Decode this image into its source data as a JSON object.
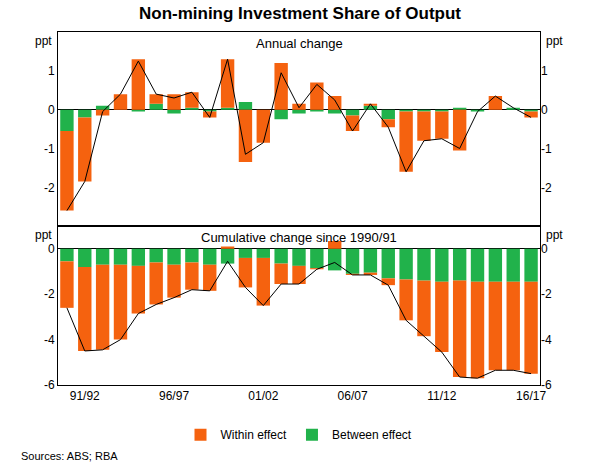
{
  "chart_data": [
    {
      "type": "bar",
      "title": "Non-mining Investment Share of Output",
      "subtitle": "Annual change",
      "ylabel": "ppt",
      "stacked": true,
      "grid": false,
      "legend": "bottom",
      "tick_labels": "y",
      "categories": [
        null,
        null,
        null,
        null,
        null,
        null,
        null,
        null,
        null,
        null,
        null,
        null,
        null,
        null,
        null,
        null,
        null,
        null,
        null,
        null,
        null,
        null,
        null,
        null,
        null,
        null,
        null
      ],
      "series": [
        {
          "name": "Between effect",
          "type": "bar",
          "color": "#21b24b",
          "values": [
            -0.55,
            -0.2,
            0.1,
            0,
            -0.05,
            0.15,
            -0.1,
            0.05,
            -0.05,
            0.05,
            0.2,
            0,
            -0.25,
            -0.1,
            -0.05,
            -0.1,
            -0.15,
            0.1,
            -0.25,
            -0.05,
            -0.05,
            -0.05,
            0.05,
            -0.05,
            0,
            0.05,
            -0.05
          ]
        },
        {
          "name": "Within effect",
          "type": "bar",
          "color": "#f5620f",
          "values": [
            -2.05,
            -1.65,
            -0.15,
            0.4,
            1.3,
            0.25,
            0.4,
            0.4,
            -0.15,
            1.25,
            -1.35,
            -0.85,
            1.2,
            0.15,
            0.7,
            0.35,
            -0.4,
            0.05,
            -0.2,
            -1.55,
            -0.75,
            -0.7,
            -1.05,
            0,
            0.35,
            0,
            -0.15
          ]
        },
        {
          "type": "line",
          "color": "#000000",
          "line_style": "solid",
          "values": [
            -2.6,
            -1.85,
            -0.05,
            0.4,
            1.25,
            0.4,
            0.3,
            0.45,
            -0.2,
            1.3,
            -1.15,
            -0.85,
            0.95,
            0.05,
            0.65,
            0.25,
            -0.55,
            0.15,
            -0.45,
            -1.6,
            -0.8,
            -0.75,
            -1.0,
            -0.05,
            0.35,
            0.05,
            -0.2
          ]
        }
      ],
      "ylim": [
        -3,
        2
      ],
      "yticks": [
        -2,
        -1,
        0,
        1
      ]
    },
    {
      "type": "bar",
      "subtitle": "Cumulative change since 1990/91",
      "ylabel": "ppt",
      "stacked": true,
      "grid": false,
      "annotations": [
        "Sources: ABS; RBA"
      ],
      "categories": [
        null,
        "91/92",
        null,
        null,
        null,
        null,
        "96/97",
        null,
        null,
        null,
        null,
        "01/02",
        null,
        null,
        null,
        null,
        "06/07",
        null,
        null,
        null,
        null,
        "11/12",
        null,
        null,
        null,
        null,
        "16/17"
      ],
      "series": [
        {
          "name": "Between effect",
          "type": "bar",
          "color": "#21b24b",
          "values": [
            -0.55,
            -0.8,
            -0.7,
            -0.7,
            -0.75,
            -0.6,
            -0.7,
            -0.6,
            -0.7,
            -0.65,
            -0.4,
            -0.4,
            -0.65,
            -0.75,
            -0.85,
            -0.95,
            -1.1,
            -1.05,
            -1.3,
            -1.35,
            -1.4,
            -1.45,
            -1.4,
            -1.45,
            -1.45,
            -1.45,
            -1.45
          ]
        },
        {
          "name": "Within effect",
          "type": "bar",
          "color": "#f5620f",
          "values": [
            -2.05,
            -3.7,
            -3.75,
            -3.3,
            -2.1,
            -1.85,
            -1.45,
            -1.2,
            -1.15,
            0.1,
            -1.3,
            -2.1,
            -0.9,
            -0.8,
            -0.05,
            0.35,
            -0.05,
            -0.1,
            -0.3,
            -1.8,
            -2.45,
            -3.1,
            -4.25,
            -4.25,
            -3.9,
            -3.9,
            -4.05
          ]
        },
        {
          "type": "line",
          "color": "#000000",
          "line_style": "solid",
          "values": [
            -2.6,
            -4.5,
            -4.45,
            -4.0,
            -2.85,
            -2.45,
            -2.15,
            -1.8,
            -1.85,
            -0.55,
            -1.7,
            -2.5,
            -1.55,
            -1.55,
            -0.9,
            -0.6,
            -1.15,
            -1.15,
            -1.6,
            -3.15,
            -3.85,
            -4.55,
            -5.65,
            -5.7,
            -5.35,
            -5.35,
            -5.5
          ]
        }
      ],
      "ylim": [
        -6,
        1
      ],
      "yticks": [
        -6,
        -4,
        -2,
        0
      ]
    }
  ]
}
